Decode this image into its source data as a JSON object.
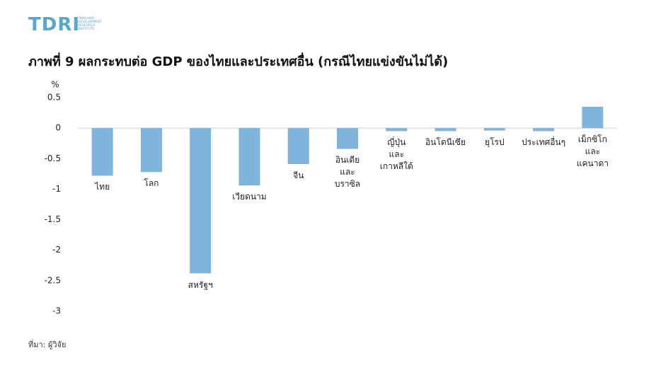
{
  "logo": {
    "name": "TDRI",
    "tagline": "THAILAND\nDEVELOPMENT\nRESEARCH\nINSTITUTE"
  },
  "chart_data": {
    "type": "bar",
    "title": "ภาพที่ 9 ผลกระทบต่อ GDP ของไทยและประเทศอื่น (กรณีไทยแข่งขันไม่ได้)",
    "y_unit": "%",
    "categories": [
      "ไทย",
      "โลก",
      "สหรัฐฯ",
      "เวียดนาม",
      "จีน",
      "อินเดีย\nและ\nบราซิล",
      "ญี่ปุ่น\nและ\nเกาหลีใต้",
      "อินโดนีเซีย",
      "ยุโรป",
      "ประเทศอื่นๆ",
      "เม็กซิโก\nและ\nแคนาดา"
    ],
    "values": [
      -0.78,
      -0.72,
      -2.38,
      -0.94,
      -0.59,
      -0.34,
      -0.05,
      -0.05,
      -0.04,
      -0.05,
      0.35
    ],
    "color": "#7fb4dc",
    "ylim": [
      -3,
      0.5
    ],
    "yticks": [
      0.5,
      0,
      -0.5,
      -1,
      -1.5,
      -2,
      -2.5,
      -3
    ],
    "grid": false,
    "source": "ที่มา: ผู้วิจัย"
  }
}
